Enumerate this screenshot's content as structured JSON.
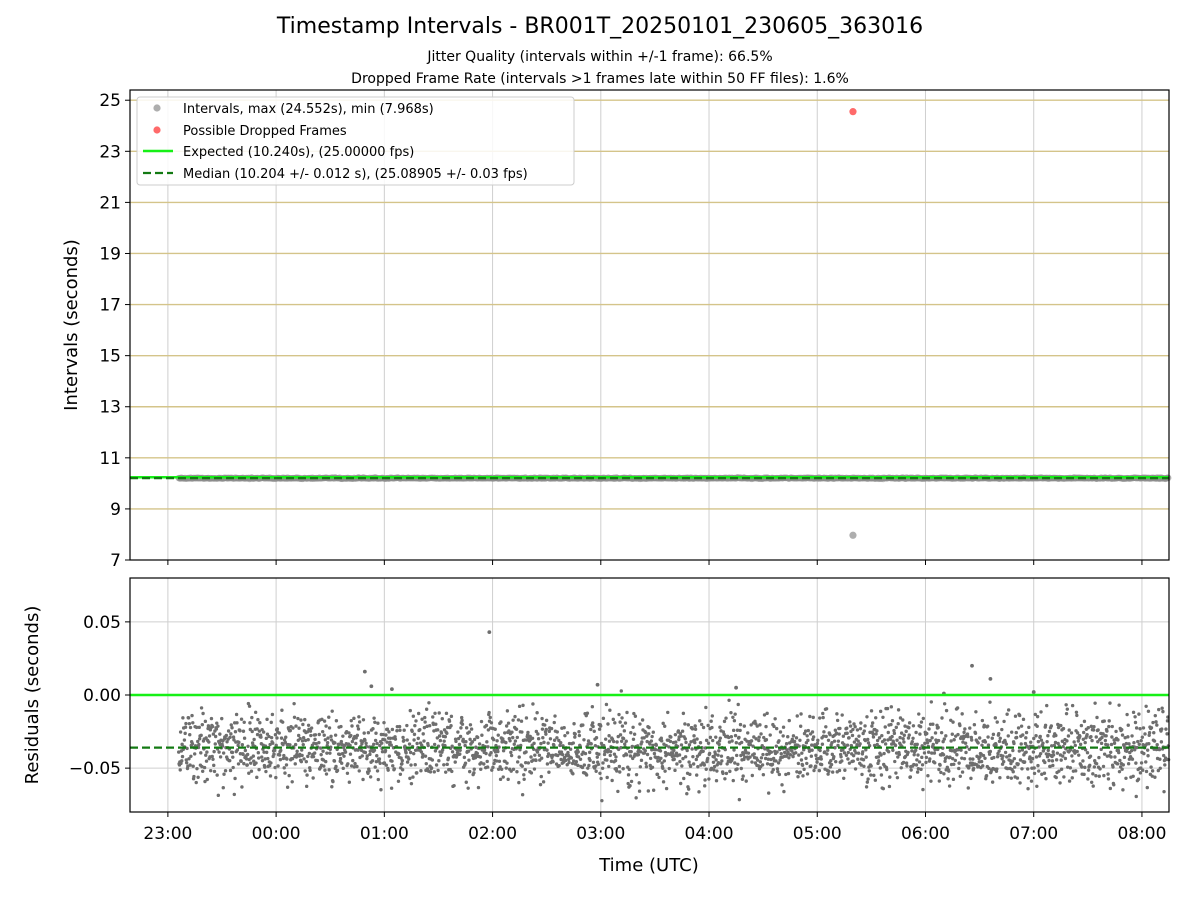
{
  "chart_data": [
    {
      "type": "scatter",
      "title": "Timestamp Intervals - BR001T_20250101_230605_363016",
      "subtitles": [
        "Jitter Quality (intervals within +/-1 frame): 66.5%",
        "Dropped Frame Rate (intervals >1 frames late within 50 FF files): 1.6%"
      ],
      "xlabel": "",
      "ylabel": "Intervals (seconds)",
      "xlim_hours": [
        22.65,
        32.25
      ],
      "ylim": [
        7,
        25.4
      ],
      "yticks": [
        "7",
        "9",
        "11",
        "13",
        "15",
        "17",
        "19",
        "21",
        "23",
        "25"
      ],
      "grid": true,
      "legend_position": "upper-left",
      "legend": [
        "Intervals, max (24.552s), min (7.968s)",
        "Possible Dropped Frames",
        "Expected (10.240s), (25.00000 fps)",
        "Median (10.204 +/- 0.012 s), (25.08905 +/- 0.03 fps)"
      ],
      "series": [
        {
          "name": "Intervals, max (24.552s), min (7.968s)",
          "color": "#8c8c8c",
          "x_range_hours": [
            23.1,
            32.25
          ],
          "typical_value": 10.204,
          "spread": 0.012,
          "outliers": [
            {
              "x": 29.33,
              "y": 7.968
            }
          ]
        },
        {
          "name": "Possible Dropped Frames",
          "color": "#ff5a5a",
          "points": [
            {
              "x": 29.33,
              "y": 24.552
            }
          ]
        },
        {
          "name": "Expected (10.240s), (25.00000 fps)",
          "color": "#16f016",
          "value": 10.24,
          "style": "solid"
        },
        {
          "name": "Median (10.204 +/- 0.012 s), (25.08905 +/- 0.03 fps)",
          "color": "#137a13",
          "value": 10.204,
          "style": "dashed"
        }
      ]
    },
    {
      "type": "scatter",
      "xlabel": "Time (UTC)",
      "ylabel": "Residuals (seconds)",
      "xlim_hours": [
        22.65,
        32.25
      ],
      "ylim": [
        -0.08,
        0.08
      ],
      "yticks": [
        "0.05",
        "0.00",
        "−0.05"
      ],
      "ytick_values": [
        0.05,
        0,
        -0.05
      ],
      "xticks": [
        "23:00",
        "00:00",
        "01:00",
        "02:00",
        "03:00",
        "04:00",
        "05:00",
        "06:00",
        "07:00",
        "08:00"
      ],
      "xtick_values_hours": [
        23,
        24,
        25,
        26,
        27,
        28,
        29,
        30,
        31,
        32
      ],
      "grid": true,
      "series": [
        {
          "name": "Residuals",
          "color": "#6e6e6e",
          "x_range_hours": [
            23.1,
            32.25
          ],
          "mean": -0.036,
          "spread": 0.012,
          "outliers": [
            {
              "x": 25.97,
              "y": 0.043
            },
            {
              "x": 24.82,
              "y": 0.016
            },
            {
              "x": 25.07,
              "y": 0.004
            },
            {
              "x": 26.97,
              "y": 0.007
            },
            {
              "x": 30.17,
              "y": 0.001
            },
            {
              "x": 30.43,
              "y": 0.02
            },
            {
              "x": 30.6,
              "y": 0.011
            },
            {
              "x": 31.0,
              "y": 0.002
            },
            {
              "x": 28.25,
              "y": 0.005
            },
            {
              "x": 24.88,
              "y": 0.006
            }
          ]
        },
        {
          "name": "Expected",
          "color": "#16f016",
          "value": 0.0,
          "style": "solid"
        },
        {
          "name": "Median",
          "color": "#137a13",
          "value": -0.036,
          "style": "dashed"
        }
      ]
    }
  ]
}
